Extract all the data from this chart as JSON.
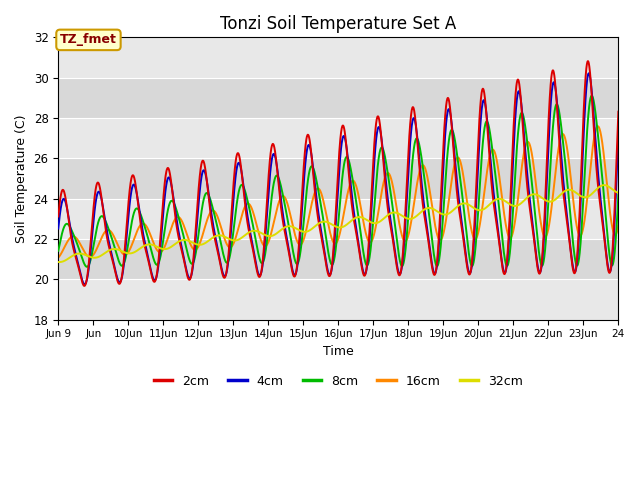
{
  "title": "Tonzi Soil Temperature Set A",
  "xlabel": "Time",
  "ylabel": "Soil Temperature (C)",
  "ylim": [
    18,
    32
  ],
  "annotation_text": "TZ_fmet",
  "annotation_bg": "#ffffcc",
  "annotation_border": "#cc9900",
  "annotation_text_color": "#880000",
  "line_colors": {
    "2cm": "#dd0000",
    "4cm": "#0000cc",
    "8cm": "#00bb00",
    "16cm": "#ff8800",
    "32cm": "#dddd00"
  },
  "bg_color": "#e8e8e8",
  "grid_color": "#ffffff",
  "band_color": "#dcdcdc"
}
